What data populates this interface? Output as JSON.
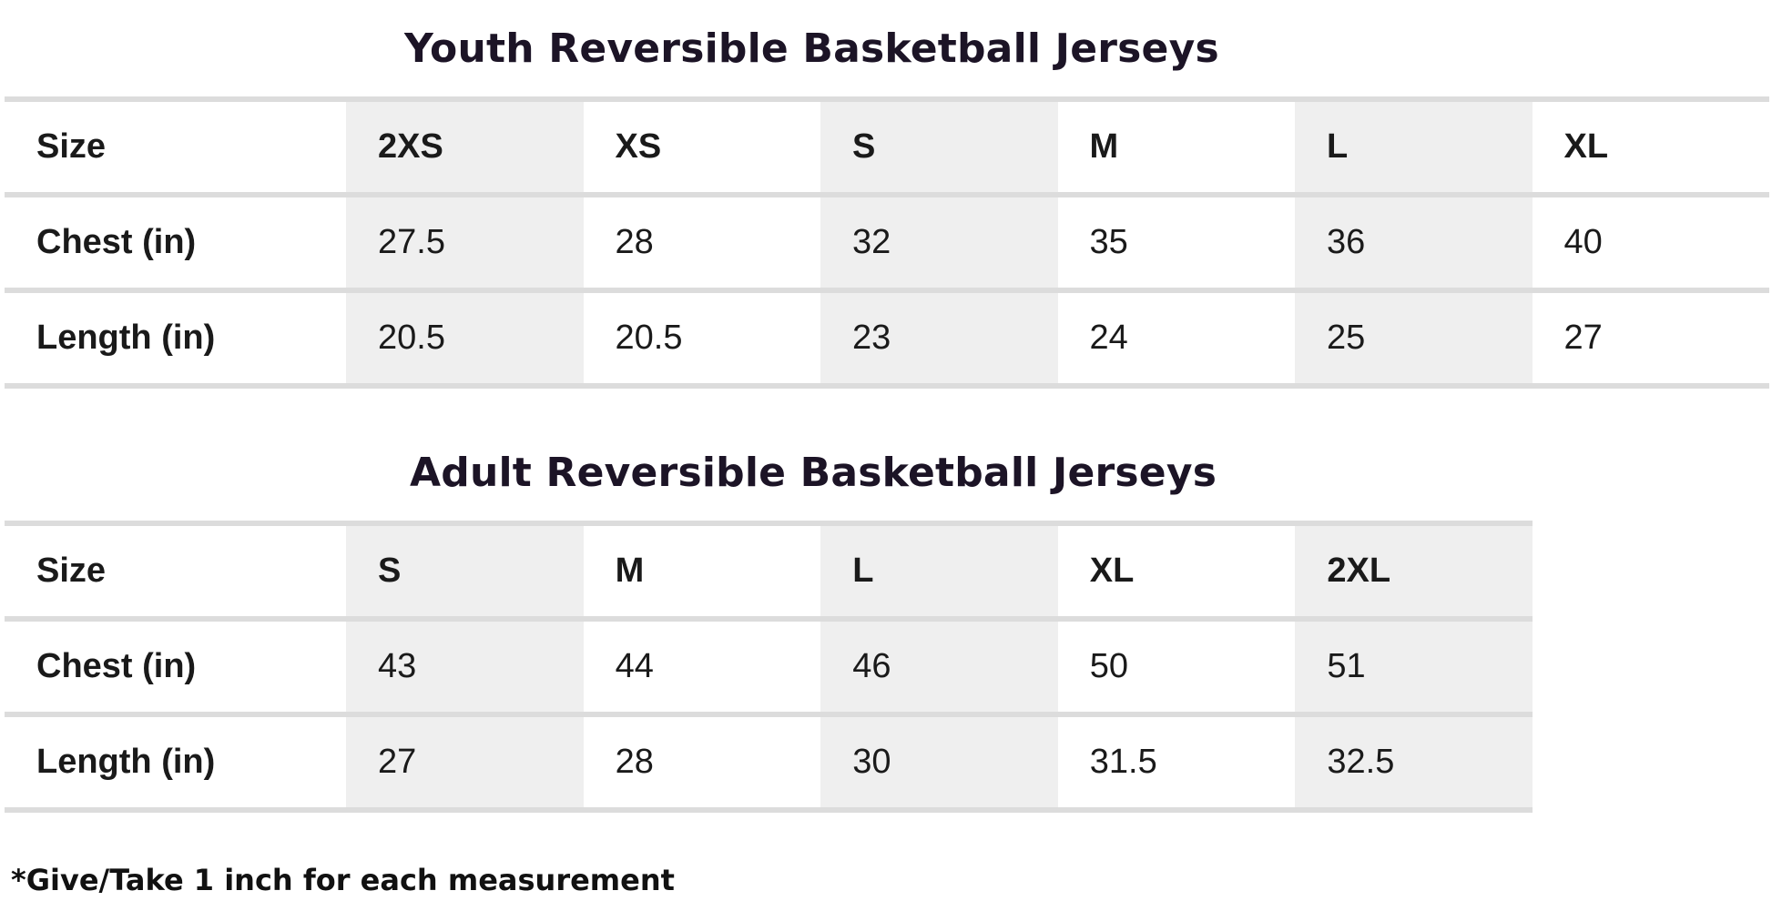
{
  "youth": {
    "title": "Youth Reversible Basketball Jerseys",
    "row_labels": [
      "Size",
      "Chest (in)",
      "Length (in)"
    ],
    "sizes": [
      "2XS",
      "XS",
      "S",
      "M",
      "L",
      "XL"
    ],
    "chest": [
      "27.5",
      "28",
      "32",
      "35",
      "36",
      "40"
    ],
    "length": [
      "20.5",
      "20.5",
      "23",
      "24",
      "25",
      "27"
    ]
  },
  "adult": {
    "title": "Adult Reversible Basketball Jerseys",
    "row_labels": [
      "Size",
      "Chest (in)",
      "Length (in)"
    ],
    "sizes": [
      "S",
      "M",
      "L",
      "XL",
      "2XL"
    ],
    "chest": [
      "43",
      "44",
      "46",
      "50",
      "51"
    ],
    "length": [
      "27",
      "28",
      "30",
      "31.5",
      "32.5"
    ]
  },
  "footnote": "*Give/Take 1 inch for each measurement",
  "colors": {
    "shade": "#efefef",
    "rule": "#dcdcdc",
    "title": "#1c1426"
  }
}
